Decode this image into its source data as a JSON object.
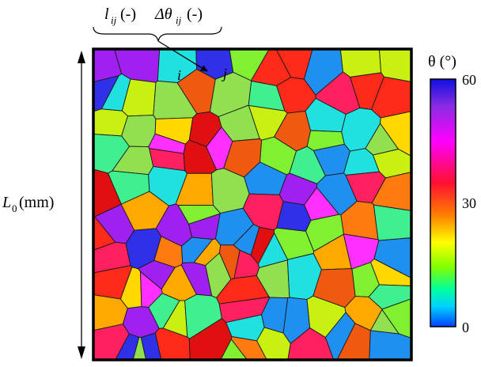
{
  "annotations": {
    "length_label": "l",
    "length_sub": "ij",
    "length_unit": " (-)",
    "misorientation_label": "Δθ",
    "misorientation_sub": "ij",
    "misorientation_unit": " (-)",
    "grain_i": "i",
    "grain_j": "j"
  },
  "axis": {
    "domain_label": "L",
    "domain_sub": "0",
    "domain_unit": " (mm)"
  },
  "colorbar": {
    "title": "θ (°)",
    "ticks": [
      "60",
      "30",
      "0"
    ],
    "stops": [
      "#1010e0",
      "#8a2be2",
      "#ff00ff",
      "#ff1030",
      "#ff7f00",
      "#ffff00",
      "#80ff00",
      "#00ffa0",
      "#00d0ff",
      "#0040ff"
    ]
  },
  "colors": {
    "grain_palette": [
      "#ff2a1a",
      "#ff7a10",
      "#ffa800",
      "#ffd800",
      "#c8f010",
      "#80f030",
      "#40f090",
      "#20e0e0",
      "#2090f0",
      "#3030e8",
      "#a020f0",
      "#ff30ff",
      "#ff2060",
      "#e01010",
      "#f05a10",
      "#90e050"
    ]
  }
}
